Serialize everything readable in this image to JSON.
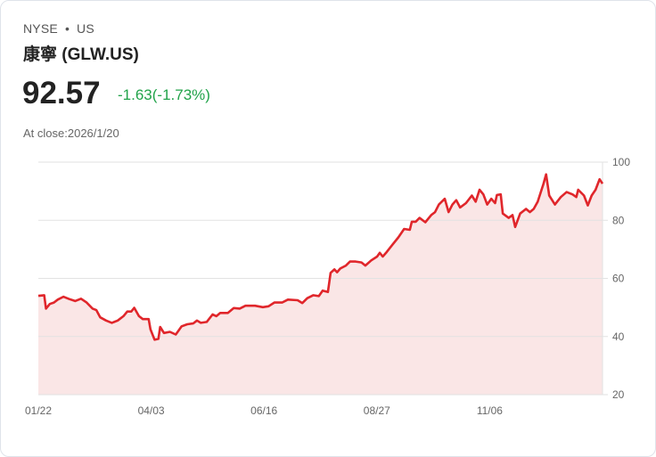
{
  "header": {
    "exchange": "NYSE",
    "separator": "•",
    "market": "US",
    "name": "康寧 (GLW.US)",
    "price": "92.57",
    "change": "-1.63(-1.73%)",
    "close_label": "At close:2026/1/20"
  },
  "colors": {
    "line": "#e0262b",
    "fill": "#fae6e6",
    "change": "#22a34a"
  },
  "chart_data": {
    "type": "area",
    "title": "",
    "xlabel": "",
    "ylabel": "",
    "ylim": [
      20,
      100
    ],
    "xlim": [
      0,
      250
    ],
    "yticks": [
      100,
      80,
      60,
      40,
      20
    ],
    "xticks": [
      {
        "x": 0,
        "label": "01/22"
      },
      {
        "x": 50,
        "label": "04/03"
      },
      {
        "x": 100,
        "label": "06/16"
      },
      {
        "x": 150,
        "label": "08/27"
      },
      {
        "x": 200,
        "label": "11/06"
      }
    ],
    "grid": true,
    "series": [
      {
        "name": "GLW.US",
        "points": [
          [
            0,
            54.0
          ],
          [
            2.6,
            54.2
          ],
          [
            3.4,
            49.6
          ],
          [
            5.1,
            51.2
          ],
          [
            6.9,
            51.7
          ],
          [
            8.6,
            52.7
          ],
          [
            11.1,
            53.7
          ],
          [
            13.7,
            52.9
          ],
          [
            16.3,
            52.2
          ],
          [
            18.9,
            53.0
          ],
          [
            21.4,
            51.7
          ],
          [
            24,
            49.6
          ],
          [
            25.7,
            49.1
          ],
          [
            27.4,
            46.6
          ],
          [
            30,
            45.5
          ],
          [
            32.6,
            44.7
          ],
          [
            35.2,
            45.5
          ],
          [
            37.7,
            47.0
          ],
          [
            39.4,
            48.6
          ],
          [
            41.2,
            48.6
          ],
          [
            42.5,
            49.9
          ],
          [
            44.6,
            47.0
          ],
          [
            46.3,
            46.0
          ],
          [
            48.9,
            46.0
          ],
          [
            49.7,
            42.5
          ],
          [
            51.5,
            38.9
          ],
          [
            53.2,
            39.2
          ],
          [
            54,
            43.3
          ],
          [
            55.7,
            41.2
          ],
          [
            58.3,
            41.6
          ],
          [
            60.9,
            40.7
          ],
          [
            63.5,
            43.5
          ],
          [
            66,
            44.2
          ],
          [
            68.6,
            44.5
          ],
          [
            70.3,
            45.5
          ],
          [
            72,
            44.7
          ],
          [
            74.6,
            45.0
          ],
          [
            77.2,
            47.6
          ],
          [
            78.9,
            47.0
          ],
          [
            80.6,
            48.1
          ],
          [
            84,
            48.1
          ],
          [
            86.6,
            49.8
          ],
          [
            89.2,
            49.6
          ],
          [
            91.8,
            50.6
          ],
          [
            96,
            50.6
          ],
          [
            99.5,
            50.1
          ],
          [
            102,
            50.4
          ],
          [
            104.6,
            51.7
          ],
          [
            108,
            51.7
          ],
          [
            110.6,
            52.7
          ],
          [
            114.9,
            52.5
          ],
          [
            117,
            51.5
          ],
          [
            119.2,
            53.2
          ],
          [
            121.8,
            54.2
          ],
          [
            124.3,
            53.9
          ],
          [
            126,
            55.8
          ],
          [
            128.3,
            55.3
          ],
          [
            129.5,
            61.9
          ],
          [
            131.2,
            63.1
          ],
          [
            132.4,
            62.1
          ],
          [
            133.8,
            63.4
          ],
          [
            136.3,
            64.4
          ],
          [
            138.1,
            65.8
          ],
          [
            140.6,
            65.8
          ],
          [
            143.2,
            65.5
          ],
          [
            144.9,
            64.4
          ],
          [
            147.5,
            66.2
          ],
          [
            150.1,
            67.5
          ],
          [
            151.3,
            68.8
          ],
          [
            152.6,
            67.5
          ],
          [
            154.3,
            69.0
          ],
          [
            156.9,
            71.6
          ],
          [
            159.5,
            74.1
          ],
          [
            162.1,
            77.0
          ],
          [
            164.6,
            76.7
          ],
          [
            165.5,
            79.5
          ],
          [
            167.2,
            79.5
          ],
          [
            168.9,
            80.8
          ],
          [
            171.5,
            79.3
          ],
          [
            174.1,
            81.8
          ],
          [
            175.8,
            82.8
          ],
          [
            177.5,
            85.4
          ],
          [
            180.1,
            87.4
          ],
          [
            181.8,
            82.8
          ],
          [
            183.5,
            85.4
          ],
          [
            185.2,
            86.9
          ],
          [
            186.9,
            84.4
          ],
          [
            189.5,
            85.9
          ],
          [
            192.1,
            88.5
          ],
          [
            193.8,
            86.4
          ],
          [
            195.5,
            90.5
          ],
          [
            197.2,
            88.9
          ],
          [
            198.9,
            85.4
          ],
          [
            200.7,
            87.4
          ],
          [
            202.4,
            85.9
          ],
          [
            203.2,
            88.7
          ],
          [
            204.9,
            88.9
          ],
          [
            205.8,
            82.3
          ],
          [
            208.4,
            80.8
          ],
          [
            210.1,
            81.8
          ],
          [
            211.3,
            77.7
          ],
          [
            213.5,
            82.3
          ],
          [
            216.1,
            83.9
          ],
          [
            217.8,
            82.8
          ],
          [
            219.5,
            83.9
          ],
          [
            221.3,
            86.4
          ],
          [
            223.8,
            92.5
          ],
          [
            225,
            95.8
          ],
          [
            226.4,
            88.5
          ],
          [
            228.9,
            85.4
          ],
          [
            231.5,
            88.0
          ],
          [
            234.1,
            89.7
          ],
          [
            236.7,
            88.9
          ],
          [
            238.4,
            88.0
          ],
          [
            239.2,
            90.5
          ],
          [
            241.8,
            88.5
          ],
          [
            243.5,
            85.1
          ],
          [
            245.2,
            88.5
          ],
          [
            246.9,
            90.5
          ],
          [
            248.7,
            94.1
          ],
          [
            250,
            92.57
          ]
        ]
      }
    ]
  }
}
